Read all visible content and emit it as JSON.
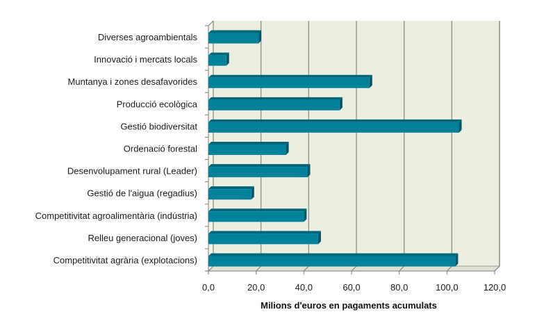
{
  "chart_data": {
    "type": "bar",
    "orientation": "horizontal",
    "title": "",
    "xlabel": "Milions d'euros en pagaments acumulats",
    "ylabel": "",
    "xlim": [
      0,
      120
    ],
    "xticks": [
      0,
      20,
      40,
      60,
      80,
      100,
      120
    ],
    "xtick_labels": [
      "0,0",
      "20,0",
      "40,0",
      "60,0",
      "80,0",
      "100,0",
      "120,0"
    ],
    "grid": true,
    "legend": "none",
    "categories": [
      "Diverses agroambientals",
      "Innovació i mercats locals",
      "Muntanya i zones desafavorides",
      "Producció ecològica",
      "Gestió biodiversitat",
      "Ordenació forestal",
      "Desenvolupament rural (Leader)",
      "Gestió de l'aigua (regadius)",
      "Competitivitat agroalimentària (indústria)",
      "Relleu generacional (joves)",
      "Competitivitat agrària (explotacions)"
    ],
    "values": [
      21.0,
      7.5,
      67.5,
      55.0,
      105.0,
      32.5,
      41.5,
      18.0,
      40.0,
      46.0,
      103.5
    ],
    "colors": {
      "bar_front": "#00829b",
      "bar_top": "#00677a",
      "bar_side": "#00586a",
      "plot_bg": "#eeeee0",
      "grid": "#8c8c8c",
      "axis": "#7a7a7a"
    }
  }
}
